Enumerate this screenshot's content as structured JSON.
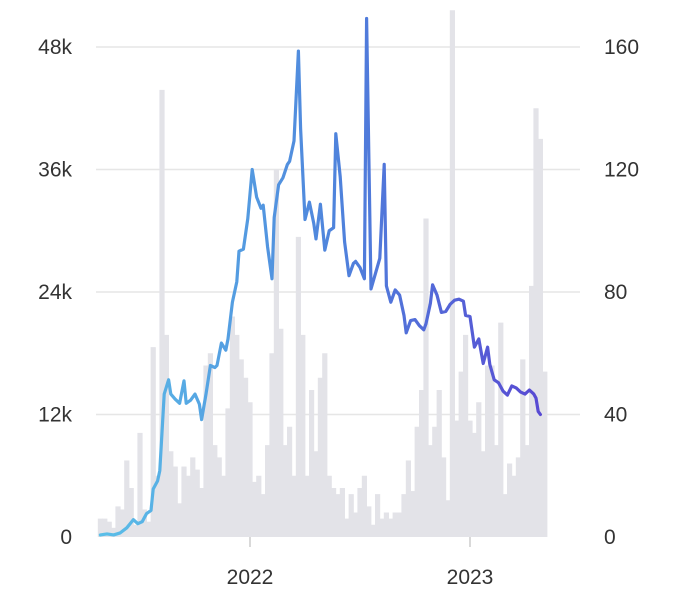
{
  "chart_data": {
    "type": "line",
    "title": "",
    "xlabel": "",
    "ylabel_left": "",
    "ylabel_right": "",
    "legend": "none",
    "grid": true,
    "x_ticks": [
      {
        "value": 2022.0,
        "label": "2022"
      },
      {
        "value": 2023.0,
        "label": "2023"
      }
    ],
    "x_range": [
      2021.3,
      2023.5
    ],
    "y_left": {
      "range": [
        0,
        48000
      ],
      "ticks": [
        {
          "value": 0,
          "label": "0"
        },
        {
          "value": 12000,
          "label": "12k"
        },
        {
          "value": 24000,
          "label": "24k"
        },
        {
          "value": 36000,
          "label": "36k"
        },
        {
          "value": 48000,
          "label": "48k"
        }
      ]
    },
    "y_right": {
      "range": [
        0,
        160
      ],
      "ticks": [
        {
          "value": 0,
          "label": "0"
        },
        {
          "value": 40,
          "label": "40"
        },
        {
          "value": 80,
          "label": "80"
        },
        {
          "value": 120,
          "label": "120"
        },
        {
          "value": 160,
          "label": "160"
        }
      ]
    },
    "colors": {
      "line_start": "#5bc0e8",
      "line_mid": "#4f83dc",
      "line_end": "#5a3fd1",
      "bars": "#e3e3e8",
      "grid": "#e6e6e6",
      "text": "#333333"
    },
    "series": [
      {
        "axis": "left",
        "kind": "line",
        "points": [
          [
            2021.32,
            200
          ],
          [
            2021.35,
            300
          ],
          [
            2021.38,
            200
          ],
          [
            2021.41,
            400
          ],
          [
            2021.44,
            900
          ],
          [
            2021.47,
            1700
          ],
          [
            2021.49,
            1300
          ],
          [
            2021.51,
            1500
          ],
          [
            2021.53,
            2300
          ],
          [
            2021.55,
            2600
          ],
          [
            2021.56,
            4700
          ],
          [
            2021.58,
            5500
          ],
          [
            2021.59,
            6500
          ],
          [
            2021.61,
            14000
          ],
          [
            2021.63,
            15400
          ],
          [
            2021.64,
            14000
          ],
          [
            2021.66,
            13500
          ],
          [
            2021.68,
            13100
          ],
          [
            2021.7,
            15300
          ],
          [
            2021.71,
            13100
          ],
          [
            2021.73,
            13400
          ],
          [
            2021.75,
            14000
          ],
          [
            2021.77,
            13000
          ],
          [
            2021.78,
            11500
          ],
          [
            2021.8,
            14000
          ],
          [
            2021.82,
            16800
          ],
          [
            2021.84,
            16600
          ],
          [
            2021.85,
            16800
          ],
          [
            2021.87,
            19000
          ],
          [
            2021.89,
            18300
          ],
          [
            2021.9,
            19400
          ],
          [
            2021.92,
            23000
          ],
          [
            2021.94,
            25000
          ],
          [
            2021.95,
            28000
          ],
          [
            2021.97,
            28200
          ],
          [
            2021.99,
            31200
          ],
          [
            2022.01,
            36000
          ],
          [
            2022.03,
            33300
          ],
          [
            2022.05,
            32200
          ],
          [
            2022.06,
            32500
          ],
          [
            2022.08,
            28400
          ],
          [
            2022.1,
            25300
          ],
          [
            2022.11,
            31300
          ],
          [
            2022.13,
            34500
          ],
          [
            2022.15,
            35200
          ],
          [
            2022.17,
            36500
          ],
          [
            2022.18,
            36800
          ],
          [
            2022.2,
            38800
          ],
          [
            2022.22,
            47600
          ],
          [
            2022.23,
            40000
          ],
          [
            2022.25,
            31100
          ],
          [
            2022.27,
            32800
          ],
          [
            2022.29,
            30700
          ],
          [
            2022.3,
            29200
          ],
          [
            2022.32,
            32600
          ],
          [
            2022.34,
            28100
          ],
          [
            2022.36,
            30000
          ],
          [
            2022.38,
            30300
          ],
          [
            2022.39,
            39500
          ],
          [
            2022.41,
            35300
          ],
          [
            2022.43,
            28900
          ],
          [
            2022.45,
            25600
          ],
          [
            2022.47,
            26800
          ],
          [
            2022.48,
            27000
          ],
          [
            2022.5,
            26400
          ],
          [
            2022.52,
            25300
          ],
          [
            2022.53,
            50800
          ],
          [
            2022.55,
            24300
          ],
          [
            2022.57,
            25800
          ],
          [
            2022.59,
            27300
          ],
          [
            2022.61,
            36500
          ],
          [
            2022.62,
            24600
          ],
          [
            2022.64,
            23000
          ],
          [
            2022.66,
            24200
          ],
          [
            2022.68,
            23700
          ],
          [
            2022.7,
            21700
          ],
          [
            2022.71,
            20000
          ],
          [
            2022.73,
            21200
          ],
          [
            2022.75,
            21300
          ],
          [
            2022.77,
            20700
          ],
          [
            2022.79,
            20300
          ],
          [
            2022.8,
            20900
          ],
          [
            2022.82,
            22900
          ],
          [
            2022.83,
            24700
          ],
          [
            2022.85,
            23700
          ],
          [
            2022.87,
            22000
          ],
          [
            2022.89,
            22100
          ],
          [
            2022.91,
            22800
          ],
          [
            2022.93,
            23200
          ],
          [
            2022.95,
            23300
          ],
          [
            2022.97,
            23100
          ],
          [
            2022.98,
            21700
          ],
          [
            2023.0,
            21600
          ],
          [
            2023.02,
            18600
          ],
          [
            2023.04,
            19400
          ],
          [
            2023.06,
            17000
          ],
          [
            2023.08,
            18600
          ],
          [
            2023.09,
            16900
          ],
          [
            2023.11,
            15400
          ],
          [
            2023.13,
            15100
          ],
          [
            2023.15,
            14300
          ],
          [
            2023.17,
            13900
          ],
          [
            2023.19,
            14800
          ],
          [
            2023.21,
            14600
          ],
          [
            2023.23,
            14200
          ],
          [
            2023.25,
            14000
          ],
          [
            2023.27,
            14400
          ],
          [
            2023.29,
            14000
          ],
          [
            2023.3,
            13600
          ],
          [
            2023.31,
            12300
          ],
          [
            2023.32,
            12000
          ]
        ]
      },
      {
        "axis": "right",
        "kind": "bar",
        "points": [
          [
            2021.32,
            6
          ],
          [
            2021.34,
            6
          ],
          [
            2021.36,
            5
          ],
          [
            2021.38,
            3
          ],
          [
            2021.4,
            10
          ],
          [
            2021.42,
            9
          ],
          [
            2021.44,
            25
          ],
          [
            2021.46,
            16
          ],
          [
            2021.48,
            4
          ],
          [
            2021.5,
            34
          ],
          [
            2021.52,
            9
          ],
          [
            2021.54,
            5
          ],
          [
            2021.56,
            62
          ],
          [
            2021.58,
            20
          ],
          [
            2021.6,
            146
          ],
          [
            2021.62,
            66
          ],
          [
            2021.64,
            28
          ],
          [
            2021.66,
            23
          ],
          [
            2021.68,
            11
          ],
          [
            2021.7,
            23
          ],
          [
            2021.72,
            20
          ],
          [
            2021.74,
            26
          ],
          [
            2021.76,
            22
          ],
          [
            2021.78,
            16
          ],
          [
            2021.8,
            56
          ],
          [
            2021.82,
            60
          ],
          [
            2021.84,
            30
          ],
          [
            2021.86,
            26
          ],
          [
            2021.88,
            20
          ],
          [
            2021.9,
            42
          ],
          [
            2021.92,
            72
          ],
          [
            2021.94,
            66
          ],
          [
            2021.96,
            58
          ],
          [
            2021.98,
            52
          ],
          [
            2022.0,
            44
          ],
          [
            2022.02,
            18
          ],
          [
            2022.04,
            20
          ],
          [
            2022.06,
            14
          ],
          [
            2022.08,
            30
          ],
          [
            2022.1,
            60
          ],
          [
            2022.12,
            120
          ],
          [
            2022.14,
            68
          ],
          [
            2022.16,
            30
          ],
          [
            2022.18,
            36
          ],
          [
            2022.2,
            20
          ],
          [
            2022.22,
            98
          ],
          [
            2022.24,
            66
          ],
          [
            2022.26,
            20
          ],
          [
            2022.28,
            48
          ],
          [
            2022.3,
            28
          ],
          [
            2022.32,
            52
          ],
          [
            2022.34,
            60
          ],
          [
            2022.36,
            20
          ],
          [
            2022.38,
            16
          ],
          [
            2022.4,
            14
          ],
          [
            2022.42,
            16
          ],
          [
            2022.44,
            6
          ],
          [
            2022.46,
            14
          ],
          [
            2022.48,
            8
          ],
          [
            2022.5,
            16
          ],
          [
            2022.52,
            20
          ],
          [
            2022.54,
            10
          ],
          [
            2022.56,
            4
          ],
          [
            2022.58,
            14
          ],
          [
            2022.6,
            6
          ],
          [
            2022.62,
            8
          ],
          [
            2022.64,
            6
          ],
          [
            2022.66,
            8
          ],
          [
            2022.68,
            8
          ],
          [
            2022.7,
            14
          ],
          [
            2022.72,
            25
          ],
          [
            2022.74,
            15
          ],
          [
            2022.76,
            36
          ],
          [
            2022.78,
            48
          ],
          [
            2022.8,
            104
          ],
          [
            2022.82,
            30
          ],
          [
            2022.84,
            36
          ],
          [
            2022.86,
            48
          ],
          [
            2022.88,
            26
          ],
          [
            2022.9,
            12
          ],
          [
            2022.92,
            172
          ],
          [
            2022.94,
            38
          ],
          [
            2022.96,
            54
          ],
          [
            2022.98,
            66
          ],
          [
            2023.0,
            38
          ],
          [
            2023.02,
            34
          ],
          [
            2023.04,
            44
          ],
          [
            2023.06,
            28
          ],
          [
            2023.08,
            56
          ],
          [
            2023.1,
            56
          ],
          [
            2023.12,
            30
          ],
          [
            2023.14,
            70
          ],
          [
            2023.16,
            14
          ],
          [
            2023.18,
            24
          ],
          [
            2023.2,
            20
          ],
          [
            2023.22,
            26
          ],
          [
            2023.24,
            58
          ],
          [
            2023.26,
            30
          ],
          [
            2023.28,
            82
          ],
          [
            2023.3,
            140
          ],
          [
            2023.32,
            130
          ],
          [
            2023.34,
            54
          ]
        ]
      }
    ]
  }
}
